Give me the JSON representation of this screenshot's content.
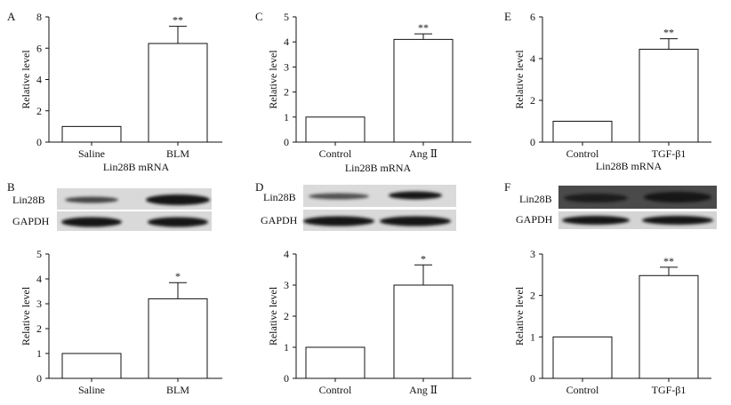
{
  "colors": {
    "bar_fill": "#ffffff",
    "bar_stroke": "#111111",
    "blot_bg": "#d6d6d6",
    "band": "#222222"
  },
  "figure": {
    "letters": [
      "A",
      "B",
      "C",
      "D",
      "E",
      "F"
    ],
    "mrna_label": "Lin28B mRNA",
    "blot_labels": {
      "target": "Lin28B",
      "loading": "GAPDH"
    }
  },
  "chart_data": [
    {
      "id": "A",
      "type": "bar",
      "categories": [
        "Saline",
        "BLM"
      ],
      "values": [
        1.0,
        6.3
      ],
      "errors": [
        0,
        1.1
      ],
      "significance": [
        "",
        "**"
      ],
      "ylabel": "Relative level",
      "xlabel": "Lin28B mRNA",
      "ylim": [
        0,
        8
      ],
      "yticks": [
        0,
        2,
        4,
        6,
        8
      ],
      "grid": false
    },
    {
      "id": "B",
      "type": "bar",
      "categories": [
        "Saline",
        "BLM"
      ],
      "values": [
        1.0,
        3.2
      ],
      "errors": [
        0,
        0.65
      ],
      "significance": [
        "",
        "*"
      ],
      "ylabel": "Relative level",
      "xlabel": "",
      "ylim": [
        0,
        5
      ],
      "yticks": [
        0,
        1,
        2,
        3,
        4,
        5
      ],
      "grid": false
    },
    {
      "id": "C",
      "type": "bar",
      "categories": [
        "Control",
        "Ang Ⅱ"
      ],
      "values": [
        1.0,
        4.1
      ],
      "errors": [
        0,
        0.22
      ],
      "significance": [
        "",
        "**"
      ],
      "ylabel": "Relative level",
      "xlabel": "Lin28B mRNA",
      "ylim": [
        0,
        5
      ],
      "yticks": [
        0,
        1,
        2,
        3,
        4,
        5
      ],
      "grid": false
    },
    {
      "id": "D",
      "type": "bar",
      "categories": [
        "Control",
        "Ang Ⅱ"
      ],
      "values": [
        1.0,
        3.0
      ],
      "errors": [
        0,
        0.65
      ],
      "significance": [
        "",
        "*"
      ],
      "ylabel": "Relative level",
      "xlabel": "",
      "ylim": [
        0,
        4
      ],
      "yticks": [
        0,
        1,
        2,
        3,
        4
      ],
      "grid": false
    },
    {
      "id": "E",
      "type": "bar",
      "categories": [
        "Control",
        "TGF-β1"
      ],
      "values": [
        1.0,
        4.45
      ],
      "errors": [
        0,
        0.5
      ],
      "significance": [
        "",
        "**"
      ],
      "ylabel": "Relative level",
      "xlabel": "Lin28B mRNA",
      "ylim": [
        0,
        6
      ],
      "yticks": [
        0,
        2,
        4,
        6
      ],
      "grid": false
    },
    {
      "id": "F",
      "type": "bar",
      "categories": [
        "Control",
        "TGF-β1"
      ],
      "values": [
        1.0,
        2.48
      ],
      "errors": [
        0,
        0.2
      ],
      "significance": [
        "",
        "**"
      ],
      "ylabel": "Relative level",
      "xlabel": "",
      "ylim": [
        0,
        3
      ],
      "yticks": [
        0,
        1,
        2,
        3
      ],
      "grid": false
    }
  ]
}
